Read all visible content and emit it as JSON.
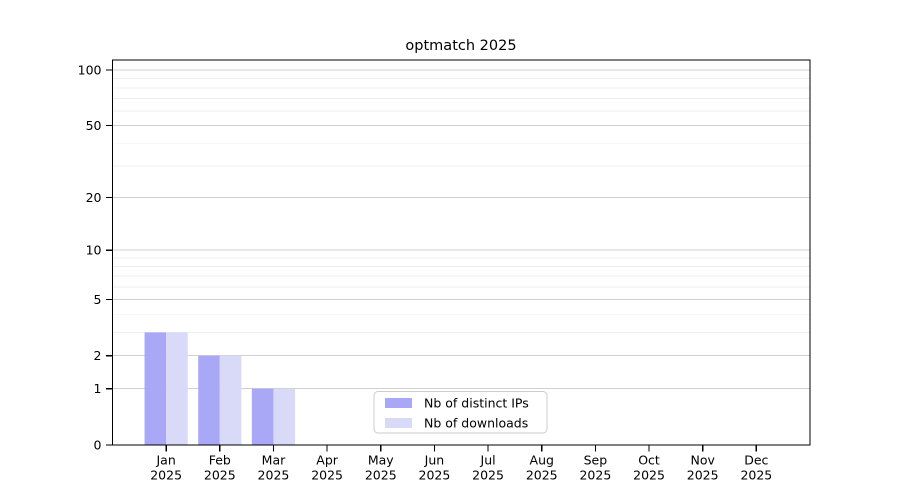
{
  "title": "optmatch 2025",
  "colors": {
    "ips_bar": "#a8a8f6",
    "downloads_bar": "#d9d9f8",
    "grid_major": "#d0d0d0",
    "grid_minor": "#efefef",
    "axis": "#000000",
    "legend_border": "#cccccc",
    "background": "#ffffff"
  },
  "legend": {
    "items": [
      {
        "label": "Nb of distinct IPs",
        "color": "#a8a8f6"
      },
      {
        "label": "Nb of downloads",
        "color": "#d9d9f8"
      }
    ]
  },
  "chart_data": {
    "type": "bar",
    "title": "optmatch 2025",
    "categories": [
      "Jan 2025",
      "Feb 2025",
      "Mar 2025",
      "Apr 2025",
      "May 2025",
      "Jun 2025",
      "Jul 2025",
      "Aug 2025",
      "Sep 2025",
      "Oct 2025",
      "Nov 2025",
      "Dec 2025"
    ],
    "x_labels": [
      [
        "Jan",
        "2025"
      ],
      [
        "Feb",
        "2025"
      ],
      [
        "Mar",
        "2025"
      ],
      [
        "Apr",
        "2025"
      ],
      [
        "May",
        "2025"
      ],
      [
        "Jun",
        "2025"
      ],
      [
        "Jul",
        "2025"
      ],
      [
        "Aug",
        "2025"
      ],
      [
        "Sep",
        "2025"
      ],
      [
        "Oct",
        "2025"
      ],
      [
        "Nov",
        "2025"
      ],
      [
        "Dec",
        "2025"
      ]
    ],
    "series": [
      {
        "name": "Nb of distinct IPs",
        "color": "#a8a8f6",
        "values": [
          3,
          2,
          1,
          0,
          0,
          0,
          0,
          0,
          0,
          0,
          0,
          0
        ]
      },
      {
        "name": "Nb of downloads",
        "color": "#d9d9f8",
        "values": [
          3,
          2,
          1,
          0,
          0,
          0,
          0,
          0,
          0,
          0,
          0,
          0
        ]
      }
    ],
    "xlabel": "",
    "ylabel": "",
    "y_scale": "log10(1+x)",
    "ylim": [
      0,
      110
    ],
    "y_ticks": [
      0,
      1,
      2,
      5,
      10,
      20,
      50,
      100
    ],
    "y_tick_labels": [
      "0",
      "1",
      "2",
      "5",
      "10",
      "20",
      "50",
      "100"
    ],
    "y_minor_gridlines": [
      1,
      2,
      3,
      4,
      5,
      6,
      7,
      8,
      9,
      10,
      20,
      30,
      40,
      50,
      60,
      70,
      80,
      90,
      100
    ],
    "grid": "horizontal",
    "legend_position": "bottom-center"
  }
}
